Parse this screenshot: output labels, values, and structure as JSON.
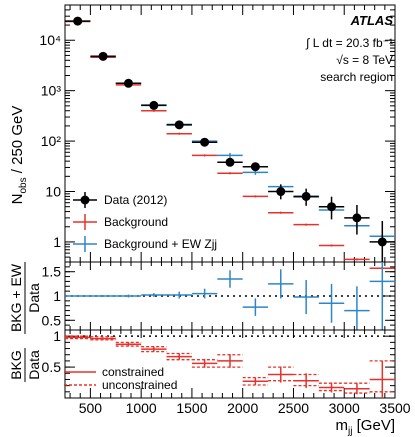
{
  "chart_data": [
    {
      "type": "scatter",
      "panel": "main",
      "ylabel": "N_obs / 250 GeV",
      "ylabel_main": "N",
      "ylabel_sub": "obs",
      "ylabel_rest": " / 250 GeV",
      "yscale": "log",
      "ylim": [
        0.4,
        50000
      ],
      "xlim": [
        250,
        3500
      ],
      "y_ticks": [
        "10⁴",
        "10³",
        "10²",
        "10",
        "1"
      ],
      "atlas": "ATLAS",
      "lumi": "∫ L dt = 20.3 fb⁻¹",
      "energy": "√s = 8 TeV",
      "region": "search region",
      "legend": [
        "Data (2012)",
        "Background",
        "Background + EW Zjj"
      ],
      "legend_placement": "lower-left",
      "colors": {
        "data": "#000000",
        "background": "#e8312a",
        "ew": "#2e86c8"
      },
      "bin_edges": [
        250,
        500,
        750,
        1000,
        1250,
        1500,
        1750,
        2000,
        2250,
        2500,
        2750,
        3000,
        3250,
        3500
      ],
      "series": [
        {
          "name": "Data (2012)",
          "values": [
            24000,
            4800,
            1400,
            510,
            210,
            95,
            38,
            31,
            10,
            8,
            5,
            3,
            1
          ],
          "err_low": [
            155,
            69,
            37,
            23,
            14,
            10,
            6,
            5.5,
            3,
            2.8,
            2.2,
            1.6,
            0.8
          ],
          "err_high": [
            155,
            69,
            37,
            23,
            14,
            10,
            6,
            5.5,
            3.7,
            3.4,
            2.9,
            2.4,
            1.6
          ]
        },
        {
          "name": "Background",
          "values": [
            23500,
            4600,
            1300,
            400,
            140,
            52,
            23,
            8,
            3.8,
            2.2,
            0.85,
            0.45,
            0.3
          ]
        },
        {
          "name": "Background + EW Zjj",
          "values": [
            24000,
            4850,
            1400,
            520,
            215,
            100,
            52,
            24,
            12.5,
            7.8,
            4.3,
            2.1,
            1.3
          ]
        }
      ]
    },
    {
      "type": "scatter",
      "panel": "ratio-ew",
      "ylabel_num": "BKG + EW",
      "ylabel_den": "Data",
      "ylim": [
        0.3,
        1.7
      ],
      "y_ticks": [
        "1.5",
        "1",
        "0.5"
      ],
      "reference_line": 1,
      "values": [
        1.0,
        1.0,
        1.0,
        1.02,
        1.02,
        1.05,
        1.35,
        0.77,
        1.25,
        0.98,
        0.85,
        0.7,
        1.3
      ],
      "y_err": [
        0.01,
        0.015,
        0.03,
        0.04,
        0.07,
        0.1,
        0.18,
        0.18,
        0.3,
        0.35,
        0.4,
        0.5,
        1.0
      ]
    },
    {
      "type": "scatter",
      "panel": "ratio-bkg",
      "ylabel_num": "BKG",
      "ylabel_den": "Data",
      "xlabel": "m_jj [GeV]",
      "xlabel_main": "m",
      "xlabel_sub": "jj",
      "xlabel_rest": " [GeV]",
      "ylim": [
        0,
        1.1
      ],
      "y_ticks": [
        "1",
        "0.5"
      ],
      "x_ticks": [
        "500",
        "1000",
        "1500",
        "2000",
        "2500",
        "3000",
        "3500"
      ],
      "legend": [
        "constrained",
        "unconstrained"
      ],
      "legend_placement": "lower-left",
      "reference_line": 1,
      "constrained": [
        0.98,
        0.96,
        0.87,
        0.79,
        0.67,
        0.56,
        0.6,
        0.27,
        0.38,
        0.28,
        0.17,
        0.15,
        0.3
      ],
      "constrained_err": [
        0.01,
        0.015,
        0.03,
        0.04,
        0.05,
        0.07,
        0.11,
        0.06,
        0.13,
        0.12,
        0.08,
        0.09,
        0.3
      ],
      "unconstrained_band": [
        [
          0.96,
          1.0
        ],
        [
          0.94,
          0.99
        ],
        [
          0.84,
          0.9
        ],
        [
          0.75,
          0.83
        ],
        [
          0.62,
          0.72
        ],
        [
          0.5,
          0.62
        ],
        [
          0.5,
          0.7
        ],
        [
          0.21,
          0.33
        ],
        [
          0.28,
          0.5
        ],
        [
          0.2,
          0.38
        ],
        [
          0.12,
          0.24
        ],
        [
          0.08,
          0.24
        ],
        [
          0.1,
          0.6
        ]
      ]
    }
  ]
}
